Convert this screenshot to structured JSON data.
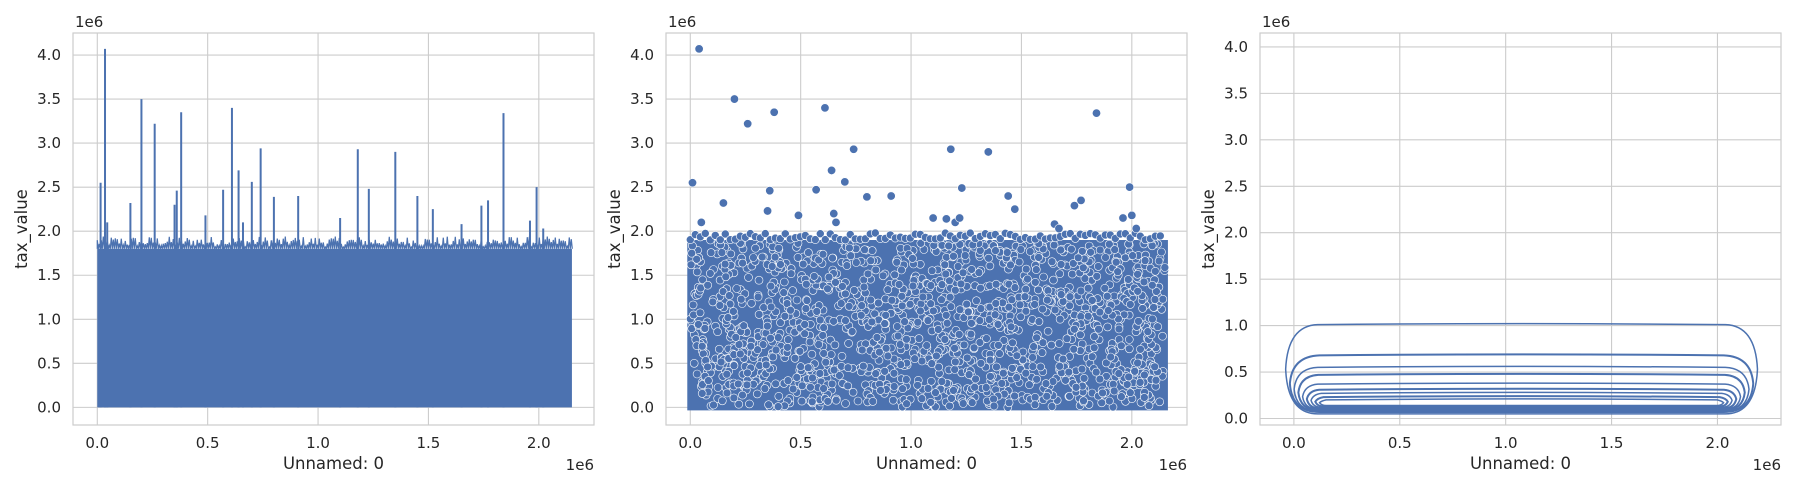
{
  "chart_data": [
    {
      "type": "line",
      "xlabel": "Unnamed: 0",
      "ylabel": "tax_value",
      "x_offset_text": "1e6",
      "y_offset_text": "1e6",
      "xlim": [
        -0.11,
        2.25
      ],
      "ylim": [
        -0.2,
        4.25
      ],
      "xticks": [
        0.0,
        0.5,
        1.0,
        1.5,
        2.0
      ],
      "yticks": [
        0.0,
        0.5,
        1.0,
        1.5,
        2.0,
        2.5,
        3.0,
        3.5,
        4.0
      ],
      "grid": true,
      "color": "#4c72b0",
      "x_range": [
        0.0,
        2.15
      ],
      "dense_band_top": 1.8,
      "spikes": [
        [
          0.015,
          2.55
        ],
        [
          0.035,
          4.07
        ],
        [
          0.045,
          2.1
        ],
        [
          0.15,
          2.32
        ],
        [
          0.2,
          3.5
        ],
        [
          0.26,
          3.22
        ],
        [
          0.35,
          2.3
        ],
        [
          0.36,
          2.46
        ],
        [
          0.38,
          3.35
        ],
        [
          0.49,
          2.18
        ],
        [
          0.57,
          2.47
        ],
        [
          0.61,
          3.4
        ],
        [
          0.64,
          2.69
        ],
        [
          0.66,
          2.1
        ],
        [
          0.7,
          2.56
        ],
        [
          0.74,
          2.94
        ],
        [
          0.8,
          2.39
        ],
        [
          0.91,
          2.4
        ],
        [
          1.1,
          2.15
        ],
        [
          1.18,
          2.93
        ],
        [
          1.23,
          2.48
        ],
        [
          1.35,
          2.9
        ],
        [
          1.45,
          2.4
        ],
        [
          1.52,
          2.25
        ],
        [
          1.65,
          2.08
        ],
        [
          1.74,
          2.29
        ],
        [
          1.77,
          2.35
        ],
        [
          1.84,
          3.34
        ],
        [
          1.96,
          2.12
        ],
        [
          1.99,
          2.5
        ],
        [
          2.02,
          2.03
        ]
      ]
    },
    {
      "type": "scatter",
      "xlabel": "Unnamed: 0",
      "ylabel": "tax_value",
      "x_offset_text": "1e6",
      "y_offset_text": "1e6",
      "xlim": [
        -0.11,
        2.25
      ],
      "ylim": [
        -0.2,
        4.25
      ],
      "xticks": [
        0.0,
        0.5,
        1.0,
        1.5,
        2.0
      ],
      "yticks": [
        0.0,
        0.5,
        1.0,
        1.5,
        2.0,
        2.5,
        3.0,
        3.5,
        4.0
      ],
      "grid": true,
      "color": "#4c72b0",
      "x_range": [
        0.0,
        2.15
      ],
      "dense_band_top": 1.9,
      "outliers": [
        [
          0.01,
          2.55
        ],
        [
          0.04,
          4.07
        ],
        [
          0.05,
          2.1
        ],
        [
          0.15,
          2.32
        ],
        [
          0.2,
          3.5
        ],
        [
          0.26,
          3.22
        ],
        [
          0.35,
          2.23
        ],
        [
          0.36,
          2.46
        ],
        [
          0.38,
          3.35
        ],
        [
          0.49,
          2.18
        ],
        [
          0.57,
          2.47
        ],
        [
          0.61,
          3.4
        ],
        [
          0.64,
          2.69
        ],
        [
          0.65,
          2.2
        ],
        [
          0.66,
          2.1
        ],
        [
          0.7,
          2.56
        ],
        [
          0.74,
          2.93
        ],
        [
          0.8,
          2.39
        ],
        [
          0.91,
          2.4
        ],
        [
          1.1,
          2.15
        ],
        [
          1.16,
          2.14
        ],
        [
          1.18,
          2.93
        ],
        [
          1.2,
          2.1
        ],
        [
          1.22,
          2.15
        ],
        [
          1.23,
          2.49
        ],
        [
          1.35,
          2.9
        ],
        [
          1.44,
          2.4
        ],
        [
          1.47,
          2.25
        ],
        [
          1.65,
          2.08
        ],
        [
          1.67,
          2.03
        ],
        [
          1.74,
          2.29
        ],
        [
          1.77,
          2.35
        ],
        [
          1.84,
          3.34
        ],
        [
          1.96,
          2.15
        ],
        [
          1.99,
          2.5
        ],
        [
          2.0,
          2.18
        ],
        [
          2.02,
          2.03
        ]
      ]
    },
    {
      "type": "contour",
      "xlabel": "Unnamed: 0",
      "ylabel": "tax_value",
      "x_offset_text": "1e6",
      "y_offset_text": "1e6",
      "xlim": [
        -0.16,
        2.3
      ],
      "ylim": [
        -0.07,
        4.15
      ],
      "xticks": [
        0.0,
        0.5,
        1.0,
        1.5,
        2.0
      ],
      "yticks": [
        0.0,
        0.5,
        1.0,
        1.5,
        2.0,
        2.5,
        3.0,
        3.5,
        4.0
      ],
      "grid": true,
      "color": "#4c72b0",
      "contours": [
        {
          "x": [
            -0.02,
            2.17
          ],
          "y": [
            0.05,
            1.01
          ]
        },
        {
          "x": [
            0.0,
            2.15
          ],
          "y": [
            0.07,
            0.68
          ]
        },
        {
          "x": [
            0.02,
            2.13
          ],
          "y": [
            0.08,
            0.55
          ]
        },
        {
          "x": [
            0.04,
            2.11
          ],
          "y": [
            0.09,
            0.47
          ]
        },
        {
          "x": [
            0.06,
            2.09
          ],
          "y": [
            0.1,
            0.37
          ]
        },
        {
          "x": [
            0.08,
            2.07
          ],
          "y": [
            0.11,
            0.31
          ]
        },
        {
          "x": [
            0.1,
            2.05
          ],
          "y": [
            0.12,
            0.27
          ]
        },
        {
          "x": [
            0.12,
            2.03
          ],
          "y": [
            0.13,
            0.23
          ]
        },
        {
          "x": [
            0.14,
            2.01
          ],
          "y": [
            0.14,
            0.2
          ]
        }
      ]
    }
  ]
}
